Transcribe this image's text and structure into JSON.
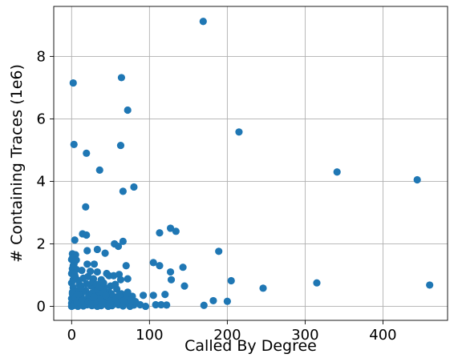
{
  "chart_data": {
    "type": "scatter",
    "title": "",
    "xlabel": "Called By Degree",
    "ylabel": "# Containing Traces (1e6)",
    "xlim": [
      -23,
      483
    ],
    "ylim": [
      -0.45,
      9.6
    ],
    "xticks": [
      0,
      100,
      200,
      300,
      400
    ],
    "yticks": [
      0,
      2,
      4,
      6,
      8
    ],
    "grid": true,
    "legend": "none",
    "color": "#1f77b4",
    "series": [
      {
        "points": [
          [
            169,
            9.12
          ],
          [
            2,
            7.15
          ],
          [
            64,
            7.32
          ],
          [
            72,
            6.28
          ],
          [
            215,
            5.58
          ],
          [
            3,
            5.18
          ],
          [
            63,
            5.15
          ],
          [
            19,
            4.9
          ],
          [
            36,
            4.36
          ],
          [
            341,
            4.3
          ],
          [
            444,
            4.05
          ],
          [
            80,
            3.82
          ],
          [
            66,
            3.68
          ],
          [
            18,
            3.18
          ],
          [
            14,
            2.32
          ],
          [
            19,
            2.28
          ],
          [
            127,
            2.5
          ],
          [
            134,
            2.4
          ],
          [
            113,
            2.35
          ],
          [
            4,
            2.12
          ],
          [
            66,
            2.08
          ],
          [
            55,
            2.0
          ],
          [
            60,
            1.92
          ],
          [
            33,
            1.82
          ],
          [
            20,
            1.78
          ],
          [
            43,
            1.7
          ],
          [
            189,
            1.76
          ],
          [
            1,
            1.68
          ],
          [
            5,
            1.65
          ],
          [
            1,
            1.55
          ],
          [
            6,
            1.48
          ],
          [
            3,
            1.35
          ],
          [
            20,
            1.35
          ],
          [
            29,
            1.35
          ],
          [
            105,
            1.4
          ],
          [
            113,
            1.3
          ],
          [
            143,
            1.25
          ],
          [
            70,
            1.3
          ],
          [
            1,
            1.2
          ],
          [
            6,
            1.18
          ],
          [
            13,
            1.15
          ],
          [
            24,
            1.12
          ],
          [
            33,
            1.1
          ],
          [
            45,
            1.05
          ],
          [
            61,
            1.02
          ],
          [
            127,
            1.1
          ],
          [
            0,
            1.05
          ],
          [
            48,
            0.98
          ],
          [
            54,
            0.98
          ],
          [
            21,
            0.95
          ],
          [
            72,
            0.88
          ],
          [
            5,
            0.92
          ],
          [
            15,
            0.9
          ],
          [
            28,
            0.88
          ],
          [
            38,
            0.85
          ],
          [
            63,
            0.85
          ],
          [
            128,
            0.85
          ],
          [
            205,
            0.82
          ],
          [
            315,
            0.75
          ],
          [
            460,
            0.68
          ],
          [
            145,
            0.65
          ],
          [
            246,
            0.58
          ],
          [
            0,
            0.75
          ],
          [
            2,
            0.6
          ],
          [
            10,
            0.7
          ],
          [
            25,
            0.65
          ],
          [
            42,
            0.6
          ],
          [
            58,
            0.55
          ],
          [
            72,
            0.45
          ],
          [
            8,
            0.5
          ],
          [
            18,
            0.5
          ],
          [
            30,
            0.5
          ],
          [
            48,
            0.45
          ],
          [
            64,
            0.4
          ],
          [
            78,
            0.32
          ],
          [
            92,
            0.35
          ],
          [
            105,
            0.35
          ],
          [
            120,
            0.38
          ],
          [
            1,
            0.4
          ],
          [
            12,
            0.35
          ],
          [
            22,
            0.35
          ],
          [
            35,
            0.35
          ],
          [
            55,
            0.3
          ],
          [
            68,
            0.3
          ],
          [
            182,
            0.18
          ],
          [
            200,
            0.16
          ],
          [
            0,
            0.25
          ],
          [
            6,
            0.22
          ],
          [
            16,
            0.22
          ],
          [
            28,
            0.2
          ],
          [
            40,
            0.2
          ],
          [
            50,
            0.18
          ],
          [
            72,
            0.15
          ],
          [
            88,
            0.05
          ],
          [
            108,
            0.05
          ],
          [
            115,
            0.05
          ],
          [
            122,
            0.04
          ],
          [
            170,
            0.03
          ],
          [
            0,
            0.1
          ],
          [
            4,
            0.08
          ],
          [
            10,
            0.06
          ],
          [
            20,
            0.05
          ],
          [
            30,
            0.04
          ],
          [
            45,
            0.05
          ],
          [
            60,
            0.05
          ],
          [
            80,
            0.04
          ],
          [
            2,
            0.02
          ],
          [
            15,
            0.01
          ],
          [
            26,
            0.02
          ],
          [
            38,
            0.02
          ],
          [
            52,
            0.02
          ],
          [
            66,
            0.01
          ],
          [
            0,
            0.0
          ],
          [
            8,
            0.0
          ],
          [
            33,
            0.0
          ],
          [
            47,
            0.0
          ],
          [
            75,
            0.0
          ],
          [
            95,
            0.0
          ],
          [
            1,
            0.45
          ],
          [
            3,
            0.3
          ],
          [
            7,
            0.15
          ],
          [
            11,
            0.25
          ],
          [
            14,
            0.45
          ],
          [
            17,
            0.12
          ],
          [
            23,
            0.28
          ],
          [
            26,
            0.42
          ],
          [
            31,
            0.15
          ],
          [
            34,
            0.55
          ],
          [
            37,
            0.25
          ],
          [
            40,
            0.45
          ],
          [
            43,
            0.12
          ],
          [
            46,
            0.3
          ],
          [
            51,
            0.4
          ],
          [
            53,
            0.12
          ],
          [
            57,
            0.25
          ],
          [
            62,
            0.2
          ],
          [
            65,
            0.1
          ],
          [
            70,
            0.22
          ],
          [
            74,
            0.1
          ],
          [
            2,
            0.85
          ],
          [
            4,
            1.0
          ],
          [
            9,
            0.82
          ],
          [
            12,
            0.6
          ],
          [
            19,
            0.72
          ],
          [
            27,
            0.78
          ],
          [
            32,
            0.7
          ],
          [
            36,
            0.62
          ],
          [
            41,
            0.75
          ],
          [
            50,
            0.65
          ],
          [
            56,
            0.7
          ],
          [
            0,
            1.5
          ],
          [
            2,
            1.3
          ],
          [
            5,
            0.28
          ],
          [
            9,
            0.38
          ],
          [
            13,
            0.18
          ],
          [
            21,
            0.15
          ],
          [
            24,
            0.08
          ],
          [
            29,
            0.3
          ],
          [
            39,
            0.1
          ],
          [
            44,
            0.35
          ],
          [
            49,
            0.08
          ],
          [
            59,
            0.15
          ],
          [
            61,
            0.35
          ],
          [
            67,
            0.18
          ],
          [
            71,
            0.35
          ],
          [
            76,
            0.2
          ],
          [
            82,
            0.15
          ]
        ]
      }
    ]
  }
}
